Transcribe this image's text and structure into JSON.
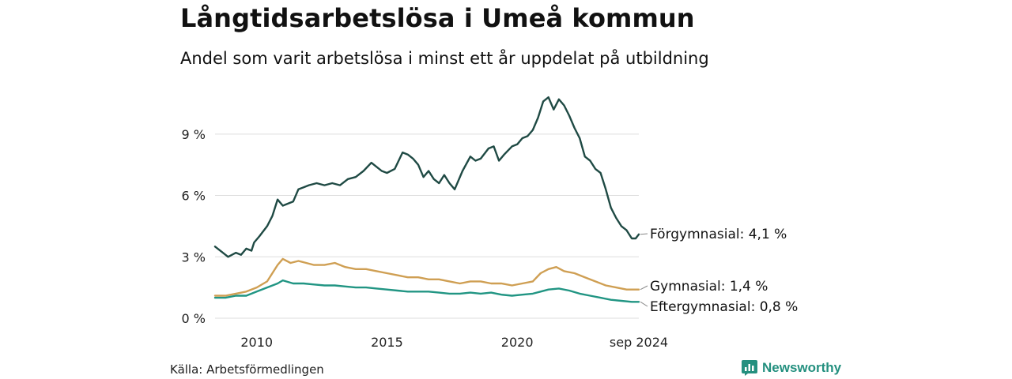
{
  "header": {
    "title": "Långtidsarbetslösa i Umeå kommun",
    "subtitle": "Andel som varit arbetslösa i minst ett år uppdelat på utbildning"
  },
  "footer": {
    "source": "Källa: Arbetsförmedlingen",
    "brand": "Newsworthy"
  },
  "chart_data": {
    "type": "line",
    "title": "Långtidsarbetslösa i Umeå kommun",
    "subtitle": "Andel som varit arbetslösa i minst ett år uppdelat på utbildning",
    "xlabel": "",
    "ylabel": "",
    "x_ticks": [
      "2010",
      "2015",
      "2020",
      "sep 2024"
    ],
    "y_ticks": [
      "0 %",
      "3 %",
      "6 %",
      "9 %"
    ],
    "xlim": [
      2008.4,
      2024.67
    ],
    "ylim": [
      0,
      11
    ],
    "grid": "horizontal",
    "legend": "direct labels at line ends",
    "series": [
      {
        "name": "Förgymnasial",
        "end_label": "Förgymnasial: 4,1 %",
        "color": "#1f4a44",
        "points": [
          [
            2008.4,
            3.5
          ],
          [
            2008.7,
            3.2
          ],
          [
            2008.9,
            3.0
          ],
          [
            2009.2,
            3.2
          ],
          [
            2009.4,
            3.1
          ],
          [
            2009.6,
            3.4
          ],
          [
            2009.8,
            3.3
          ],
          [
            2009.9,
            3.7
          ],
          [
            2010.1,
            4.0
          ],
          [
            2010.4,
            4.5
          ],
          [
            2010.6,
            5.0
          ],
          [
            2010.8,
            5.8
          ],
          [
            2011.0,
            5.5
          ],
          [
            2011.2,
            5.6
          ],
          [
            2011.4,
            5.7
          ],
          [
            2011.6,
            6.3
          ],
          [
            2011.8,
            6.4
          ],
          [
            2012.0,
            6.5
          ],
          [
            2012.3,
            6.6
          ],
          [
            2012.6,
            6.5
          ],
          [
            2012.9,
            6.6
          ],
          [
            2013.2,
            6.5
          ],
          [
            2013.5,
            6.8
          ],
          [
            2013.8,
            6.9
          ],
          [
            2014.1,
            7.2
          ],
          [
            2014.4,
            7.6
          ],
          [
            2014.6,
            7.4
          ],
          [
            2014.8,
            7.2
          ],
          [
            2015.0,
            7.1
          ],
          [
            2015.3,
            7.3
          ],
          [
            2015.6,
            8.1
          ],
          [
            2015.8,
            8.0
          ],
          [
            2016.0,
            7.8
          ],
          [
            2016.2,
            7.5
          ],
          [
            2016.4,
            6.9
          ],
          [
            2016.6,
            7.2
          ],
          [
            2016.8,
            6.8
          ],
          [
            2017.0,
            6.6
          ],
          [
            2017.2,
            7.0
          ],
          [
            2017.4,
            6.6
          ],
          [
            2017.6,
            6.3
          ],
          [
            2017.9,
            7.2
          ],
          [
            2018.2,
            7.9
          ],
          [
            2018.4,
            7.7
          ],
          [
            2018.6,
            7.8
          ],
          [
            2018.9,
            8.3
          ],
          [
            2019.1,
            8.4
          ],
          [
            2019.3,
            7.7
          ],
          [
            2019.5,
            8.0
          ],
          [
            2019.8,
            8.4
          ],
          [
            2020.0,
            8.5
          ],
          [
            2020.2,
            8.8
          ],
          [
            2020.4,
            8.9
          ],
          [
            2020.6,
            9.2
          ],
          [
            2020.8,
            9.8
          ],
          [
            2021.0,
            10.6
          ],
          [
            2021.2,
            10.8
          ],
          [
            2021.4,
            10.2
          ],
          [
            2021.6,
            10.7
          ],
          [
            2021.8,
            10.4
          ],
          [
            2022.0,
            9.9
          ],
          [
            2022.2,
            9.3
          ],
          [
            2022.4,
            8.8
          ],
          [
            2022.6,
            7.9
          ],
          [
            2022.8,
            7.7
          ],
          [
            2023.0,
            7.3
          ],
          [
            2023.2,
            7.1
          ],
          [
            2023.4,
            6.3
          ],
          [
            2023.6,
            5.4
          ],
          [
            2023.8,
            4.9
          ],
          [
            2024.0,
            4.5
          ],
          [
            2024.2,
            4.3
          ],
          [
            2024.4,
            3.9
          ],
          [
            2024.55,
            3.9
          ],
          [
            2024.67,
            4.1
          ]
        ]
      },
      {
        "name": "Gymnasial",
        "end_label": "Gymnasial: 1,4 %",
        "color": "#cf9f53",
        "points": [
          [
            2008.4,
            1.1
          ],
          [
            2008.8,
            1.1
          ],
          [
            2009.2,
            1.2
          ],
          [
            2009.6,
            1.3
          ],
          [
            2010.0,
            1.5
          ],
          [
            2010.4,
            1.8
          ],
          [
            2010.6,
            2.2
          ],
          [
            2010.8,
            2.6
          ],
          [
            2011.0,
            2.9
          ],
          [
            2011.3,
            2.7
          ],
          [
            2011.6,
            2.8
          ],
          [
            2011.9,
            2.7
          ],
          [
            2012.2,
            2.6
          ],
          [
            2012.6,
            2.6
          ],
          [
            2013.0,
            2.7
          ],
          [
            2013.4,
            2.5
          ],
          [
            2013.8,
            2.4
          ],
          [
            2014.2,
            2.4
          ],
          [
            2014.6,
            2.3
          ],
          [
            2015.0,
            2.2
          ],
          [
            2015.4,
            2.1
          ],
          [
            2015.8,
            2.0
          ],
          [
            2016.2,
            2.0
          ],
          [
            2016.6,
            1.9
          ],
          [
            2017.0,
            1.9
          ],
          [
            2017.4,
            1.8
          ],
          [
            2017.8,
            1.7
          ],
          [
            2018.2,
            1.8
          ],
          [
            2018.6,
            1.8
          ],
          [
            2019.0,
            1.7
          ],
          [
            2019.4,
            1.7
          ],
          [
            2019.8,
            1.6
          ],
          [
            2020.2,
            1.7
          ],
          [
            2020.6,
            1.8
          ],
          [
            2020.9,
            2.2
          ],
          [
            2021.2,
            2.4
          ],
          [
            2021.5,
            2.5
          ],
          [
            2021.8,
            2.3
          ],
          [
            2022.2,
            2.2
          ],
          [
            2022.6,
            2.0
          ],
          [
            2023.0,
            1.8
          ],
          [
            2023.4,
            1.6
          ],
          [
            2023.8,
            1.5
          ],
          [
            2024.2,
            1.4
          ],
          [
            2024.67,
            1.4
          ]
        ]
      },
      {
        "name": "Eftergymnasial",
        "end_label": "Eftergymnasial: 0,8 %",
        "color": "#219583",
        "points": [
          [
            2008.4,
            1.0
          ],
          [
            2008.8,
            1.0
          ],
          [
            2009.2,
            1.1
          ],
          [
            2009.6,
            1.1
          ],
          [
            2010.0,
            1.3
          ],
          [
            2010.4,
            1.5
          ],
          [
            2010.8,
            1.7
          ],
          [
            2011.0,
            1.85
          ],
          [
            2011.4,
            1.7
          ],
          [
            2011.8,
            1.7
          ],
          [
            2012.2,
            1.65
          ],
          [
            2012.6,
            1.6
          ],
          [
            2013.0,
            1.6
          ],
          [
            2013.4,
            1.55
          ],
          [
            2013.8,
            1.5
          ],
          [
            2014.2,
            1.5
          ],
          [
            2014.6,
            1.45
          ],
          [
            2015.0,
            1.4
          ],
          [
            2015.4,
            1.35
          ],
          [
            2015.8,
            1.3
          ],
          [
            2016.2,
            1.3
          ],
          [
            2016.6,
            1.3
          ],
          [
            2017.0,
            1.25
          ],
          [
            2017.4,
            1.2
          ],
          [
            2017.8,
            1.2
          ],
          [
            2018.2,
            1.25
          ],
          [
            2018.6,
            1.2
          ],
          [
            2019.0,
            1.25
          ],
          [
            2019.4,
            1.15
          ],
          [
            2019.8,
            1.1
          ],
          [
            2020.2,
            1.15
          ],
          [
            2020.6,
            1.2
          ],
          [
            2020.9,
            1.3
          ],
          [
            2021.2,
            1.4
          ],
          [
            2021.6,
            1.45
          ],
          [
            2022.0,
            1.35
          ],
          [
            2022.4,
            1.2
          ],
          [
            2022.8,
            1.1
          ],
          [
            2023.2,
            1.0
          ],
          [
            2023.6,
            0.9
          ],
          [
            2024.0,
            0.85
          ],
          [
            2024.4,
            0.8
          ],
          [
            2024.67,
            0.8
          ]
        ]
      }
    ]
  }
}
